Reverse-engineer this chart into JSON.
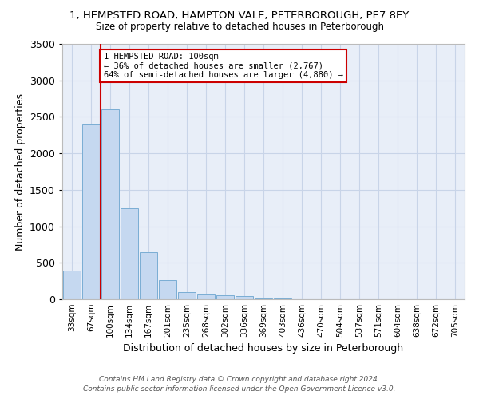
{
  "title_line1": "1, HEMPSTED ROAD, HAMPTON VALE, PETERBOROUGH, PE7 8EY",
  "title_line2": "Size of property relative to detached houses in Peterborough",
  "xlabel": "Distribution of detached houses by size in Peterborough",
  "ylabel": "Number of detached properties",
  "categories": [
    "33sqm",
    "67sqm",
    "100sqm",
    "134sqm",
    "167sqm",
    "201sqm",
    "235sqm",
    "268sqm",
    "302sqm",
    "336sqm",
    "369sqm",
    "403sqm",
    "436sqm",
    "470sqm",
    "504sqm",
    "537sqm",
    "571sqm",
    "604sqm",
    "638sqm",
    "672sqm",
    "705sqm"
  ],
  "values": [
    390,
    2400,
    2600,
    1250,
    640,
    260,
    100,
    62,
    60,
    45,
    15,
    10,
    5,
    3,
    2,
    1,
    1,
    1,
    0,
    0,
    0
  ],
  "bar_color": "#c5d8f0",
  "bar_edge_color": "#7aadd4",
  "red_line_index": 2,
  "annotation_text": "1 HEMPSTED ROAD: 100sqm\n← 36% of detached houses are smaller (2,767)\n64% of semi-detached houses are larger (4,880) →",
  "annotation_box_color": "#ffffff",
  "annotation_border_color": "#cc0000",
  "red_line_color": "#cc0000",
  "grid_color": "#c8d4e8",
  "background_color": "#e8eef8",
  "ylim": [
    0,
    3500
  ],
  "yticks": [
    0,
    500,
    1000,
    1500,
    2000,
    2500,
    3000,
    3500
  ],
  "footer_line1": "Contains HM Land Registry data © Crown copyright and database right 2024.",
  "footer_line2": "Contains public sector information licensed under the Open Government Licence v3.0."
}
